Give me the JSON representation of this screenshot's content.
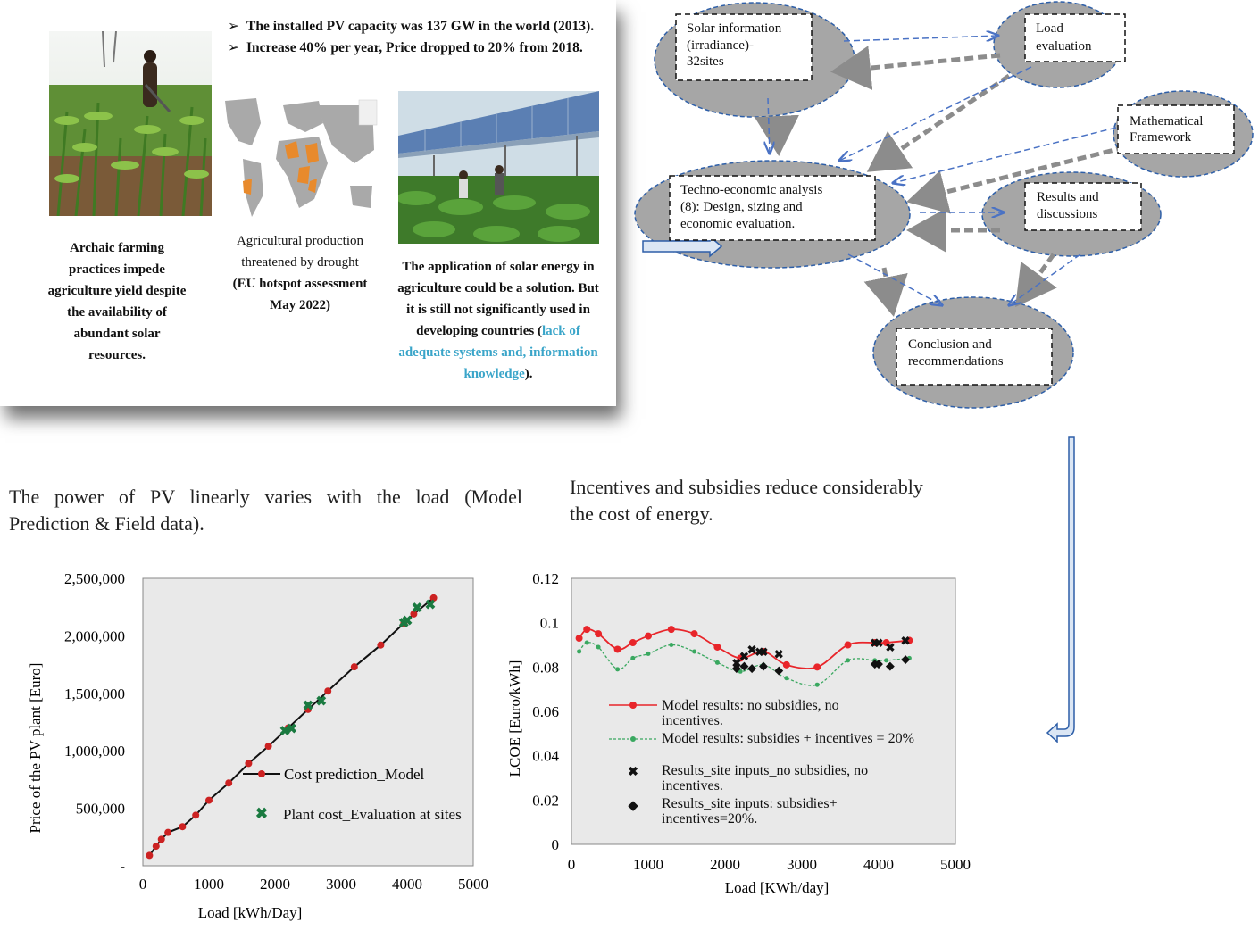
{
  "slide": {
    "bullets": [
      "The installed PV capacity was 137 GW in the world (2013).",
      "Increase 40% per year, Price dropped to  20% from 2018."
    ],
    "captions": {
      "farming": [
        "Archaic farming",
        "practices impede",
        "agriculture yield despite",
        "the availability of",
        "abundant solar",
        "resources."
      ],
      "drought": [
        "Agricultural production",
        "threatened by drought",
        "(EU hotspot assessment",
        "May 2022)"
      ],
      "solar_pre": [
        "The application of solar energy in",
        "agriculture could be a solution. But",
        "it is still not significantly used in"
      ],
      "solar_mid": "developing countries (",
      "solar_hl1": "lack of",
      "solar_hl2": "adequate systems and, information",
      "solar_hl3": "knowledge",
      "solar_end": ")."
    }
  },
  "flow": {
    "nodes": {
      "solar": [
        "Solar information",
        "(irradiance)-",
        "32sites"
      ],
      "load": [
        "Load",
        "evaluation"
      ],
      "math": [
        "Mathematical",
        "Framework"
      ],
      "techno": [
        "Techno-economic analysis",
        "(8): Design, sizing and",
        "economic evaluation."
      ],
      "results": [
        "Results and",
        "discussions"
      ],
      "conclusion": [
        "Conclusion and",
        "recommendations"
      ]
    },
    "colors": {
      "ellipse": "#a6a6a6",
      "ellipse_border": "#2e5fa8",
      "arrow": "#4a72c4",
      "grey_arrow": "#8c8c8c"
    }
  },
  "headings": {
    "left": [
      "The power of PV linearly varies with the load (Model",
      "Prediction & Field data)."
    ],
    "right": [
      "Incentives and subsidies reduce considerably",
      "the cost of energy."
    ]
  },
  "chart_data": [
    {
      "type": "line",
      "xlabel": "Load [kWh/Day]",
      "ylabel": "Price of the PV plant [Euro]",
      "xlim": [
        0,
        5000
      ],
      "ylim": [
        0,
        2500000
      ],
      "xticks": [
        "0",
        "1000",
        "2000",
        "3000",
        "4000",
        "5000"
      ],
      "yticks": [
        "-",
        "500,000",
        "1,000,000",
        "1,500,000",
        "2,000,000",
        "2,500,000"
      ],
      "grid": false,
      "legend_position": "right",
      "series": [
        {
          "name": "Cost prediction_Model",
          "color": "#cc2222",
          "x": [
            100,
            200,
            280,
            380,
            600,
            800,
            1000,
            1300,
            1600,
            1900,
            2200,
            2500,
            2800,
            3200,
            3600,
            3950,
            4100,
            4400
          ],
          "y": [
            90000,
            170000,
            230000,
            290000,
            340000,
            440000,
            570000,
            720000,
            890000,
            1040000,
            1200000,
            1360000,
            1520000,
            1730000,
            1920000,
            2110000,
            2190000,
            2330000
          ]
        },
        {
          "name": "Plant cost_Evaluation at sites",
          "color": "#1a7a40",
          "x": [
            2150,
            2250,
            2500,
            2700,
            3950,
            4000,
            4150,
            4350
          ],
          "y": [
            1180000,
            1200000,
            1400000,
            1440000,
            2120000,
            2140000,
            2250000,
            2280000
          ]
        }
      ]
    },
    {
      "type": "line",
      "xlabel": "Load [KWh/day]",
      "ylabel": "LCOE [Euro/kWh]",
      "xlim": [
        0,
        5000
      ],
      "ylim": [
        0,
        0.12
      ],
      "xticks": [
        "0",
        "1000",
        "2000",
        "3000",
        "4000",
        "5000"
      ],
      "yticks": [
        "0",
        "0.02",
        "0.04",
        "0.06",
        "0.08",
        "0.1",
        "0.12"
      ],
      "grid": false,
      "legend_position": "bottom-left",
      "series": [
        {
          "name": "Model results: no subsidies, no incentives.",
          "color": "#e8252a",
          "x": [
            100,
            200,
            350,
            600,
            800,
            1000,
            1300,
            1600,
            1900,
            2200,
            2500,
            2800,
            3200,
            3600,
            3950,
            4100,
            4400
          ],
          "y": [
            0.093,
            0.097,
            0.095,
            0.088,
            0.091,
            0.094,
            0.097,
            0.095,
            0.089,
            0.084,
            0.087,
            0.081,
            0.08,
            0.09,
            0.091,
            0.091,
            0.092
          ]
        },
        {
          "name": "Model results: subsidies + incentives = 20%",
          "color": "#3aa860",
          "x": [
            100,
            200,
            350,
            600,
            800,
            1000,
            1300,
            1600,
            1900,
            2200,
            2500,
            2800,
            3200,
            3600,
            3950,
            4100,
            4400
          ],
          "y": [
            0.087,
            0.091,
            0.089,
            0.079,
            0.084,
            0.086,
            0.09,
            0.087,
            0.082,
            0.078,
            0.081,
            0.075,
            0.072,
            0.083,
            0.083,
            0.083,
            0.084
          ]
        },
        {
          "name": "Results_site inputs_no subsidies, no incentives.",
          "color": "#111111",
          "x": [
            2150,
            2250,
            2350,
            2450,
            2500,
            2700,
            3950,
            4000,
            4150,
            4350
          ],
          "y": [
            0.082,
            0.085,
            0.088,
            0.087,
            0.087,
            0.086,
            0.091,
            0.091,
            0.089,
            0.092
          ]
        },
        {
          "name": "Results_site inputs: subsidies+ incentives=20%.",
          "color": "#111111",
          "x": [
            2150,
            2250,
            2350,
            2500,
            2700,
            3950,
            4000,
            4150,
            4350
          ],
          "y": [
            0.08,
            0.081,
            0.08,
            0.081,
            0.079,
            0.082,
            0.082,
            0.081,
            0.084
          ]
        }
      ]
    }
  ]
}
